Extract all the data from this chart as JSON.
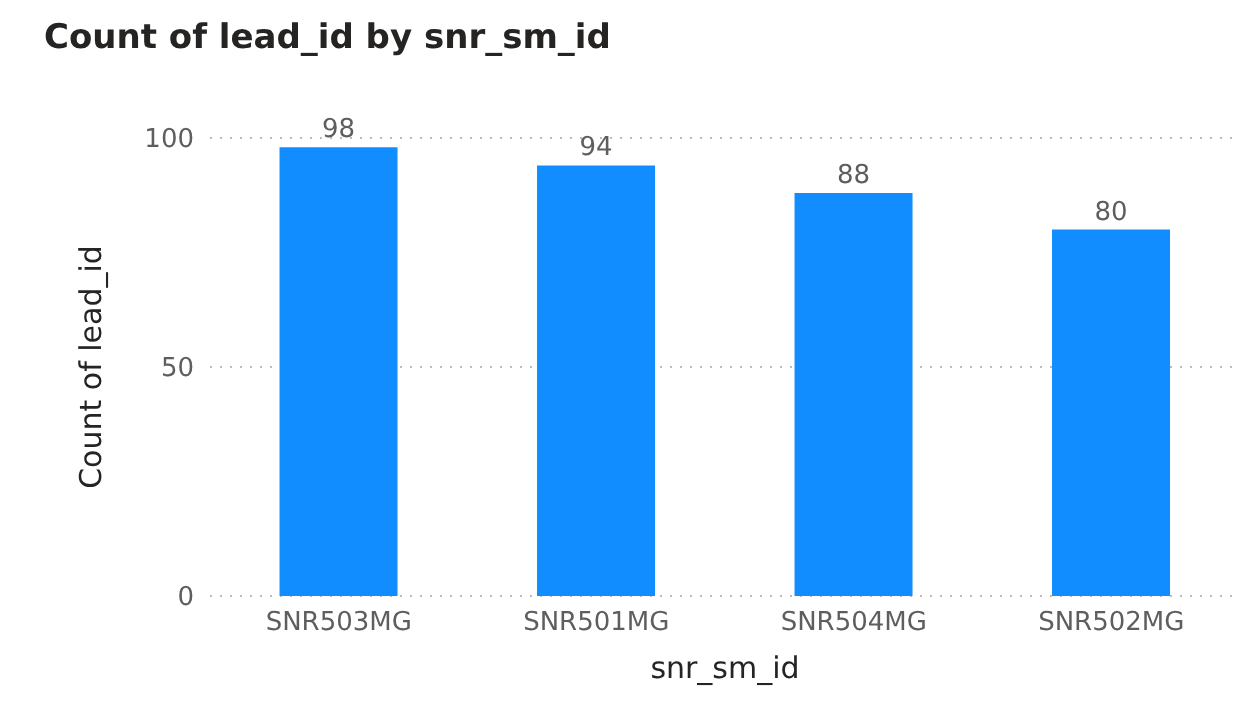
{
  "chart_data": {
    "type": "bar",
    "title": "Count of lead_id by snr_sm_id",
    "xlabel": "snr_sm_id",
    "ylabel": "Count of lead_id",
    "categories": [
      "SNR503MG",
      "SNR501MG",
      "SNR504MG",
      "SNR502MG"
    ],
    "values": [
      98,
      94,
      88,
      80
    ],
    "color": "#118dff",
    "ylim": [
      0,
      100
    ],
    "yticks": [
      0,
      50,
      100
    ],
    "grid": "y",
    "data_labels": true
  }
}
